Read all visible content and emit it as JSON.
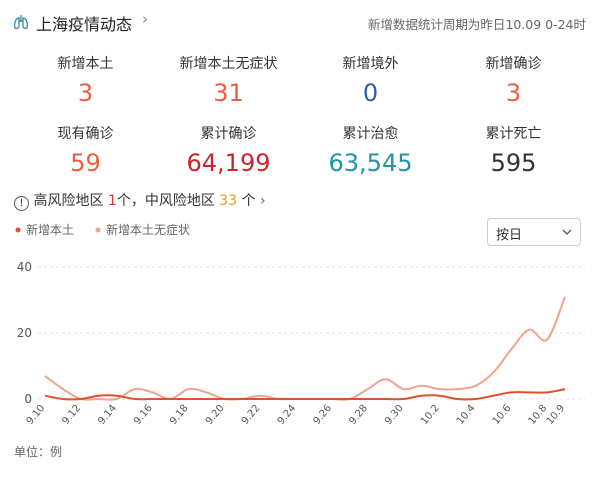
{
  "header": {
    "title": "上海疫情动态",
    "note": "新增数据统计周期为昨日10.09 0-24时"
  },
  "stats": [
    {
      "label": "新增本土",
      "value": "3",
      "color": "#e8603f"
    },
    {
      "label": "新增本土无症状",
      "value": "31",
      "color": "#e8603f"
    },
    {
      "label": "新增境外",
      "value": "0",
      "color": "#2f5fa8"
    },
    {
      "label": "新增确诊",
      "value": "3",
      "color": "#e8603f"
    },
    {
      "label": "现有确诊",
      "value": "59",
      "color": "#e8603f"
    },
    {
      "label": "累计确诊",
      "value": "64,199",
      "color": "#c8252c"
    },
    {
      "label": "累计治愈",
      "value": "63,545",
      "color": "#1f95a8"
    },
    {
      "label": "累计死亡",
      "value": "595",
      "color": "#333333"
    }
  ],
  "risk": {
    "high_label": "高风险地区",
    "high_count": "1",
    "mid_label": "个，中风险地区",
    "mid_count": "33",
    "unit": "个"
  },
  "period_select": "按日",
  "chart_data": {
    "type": "line",
    "categories": [
      "9.10",
      null,
      "9.12",
      null,
      "9.14",
      null,
      "9.16",
      null,
      "9.18",
      null,
      "9.20",
      null,
      "9.22",
      null,
      "9.24",
      null,
      "9.26",
      null,
      "9.28",
      null,
      "9.30",
      null,
      "10.2",
      null,
      "10.4",
      null,
      "10.6",
      null,
      "10.8",
      "10.9"
    ],
    "series": [
      {
        "name": "新增本土",
        "color": "#e0502e",
        "values": [
          1,
          0,
          0,
          1,
          1,
          0,
          0,
          0,
          0,
          0,
          0,
          0,
          0,
          0,
          0,
          0,
          0,
          0,
          0,
          0,
          0,
          1,
          1,
          0,
          0,
          1,
          2,
          2,
          2,
          3
        ]
      },
      {
        "name": "新增本土无症状",
        "color": "#f2a38e",
        "values": [
          7,
          3,
          0,
          0,
          0,
          3,
          2,
          0,
          3,
          2,
          0,
          0,
          1,
          0,
          0,
          0,
          0,
          0,
          3,
          6,
          3,
          4,
          3,
          3,
          4,
          8,
          15,
          21,
          18,
          31
        ]
      }
    ],
    "ylim": [
      0,
      40
    ],
    "yticks": [
      0,
      20,
      40
    ],
    "grid": true,
    "unit_label": "单位：例"
  }
}
